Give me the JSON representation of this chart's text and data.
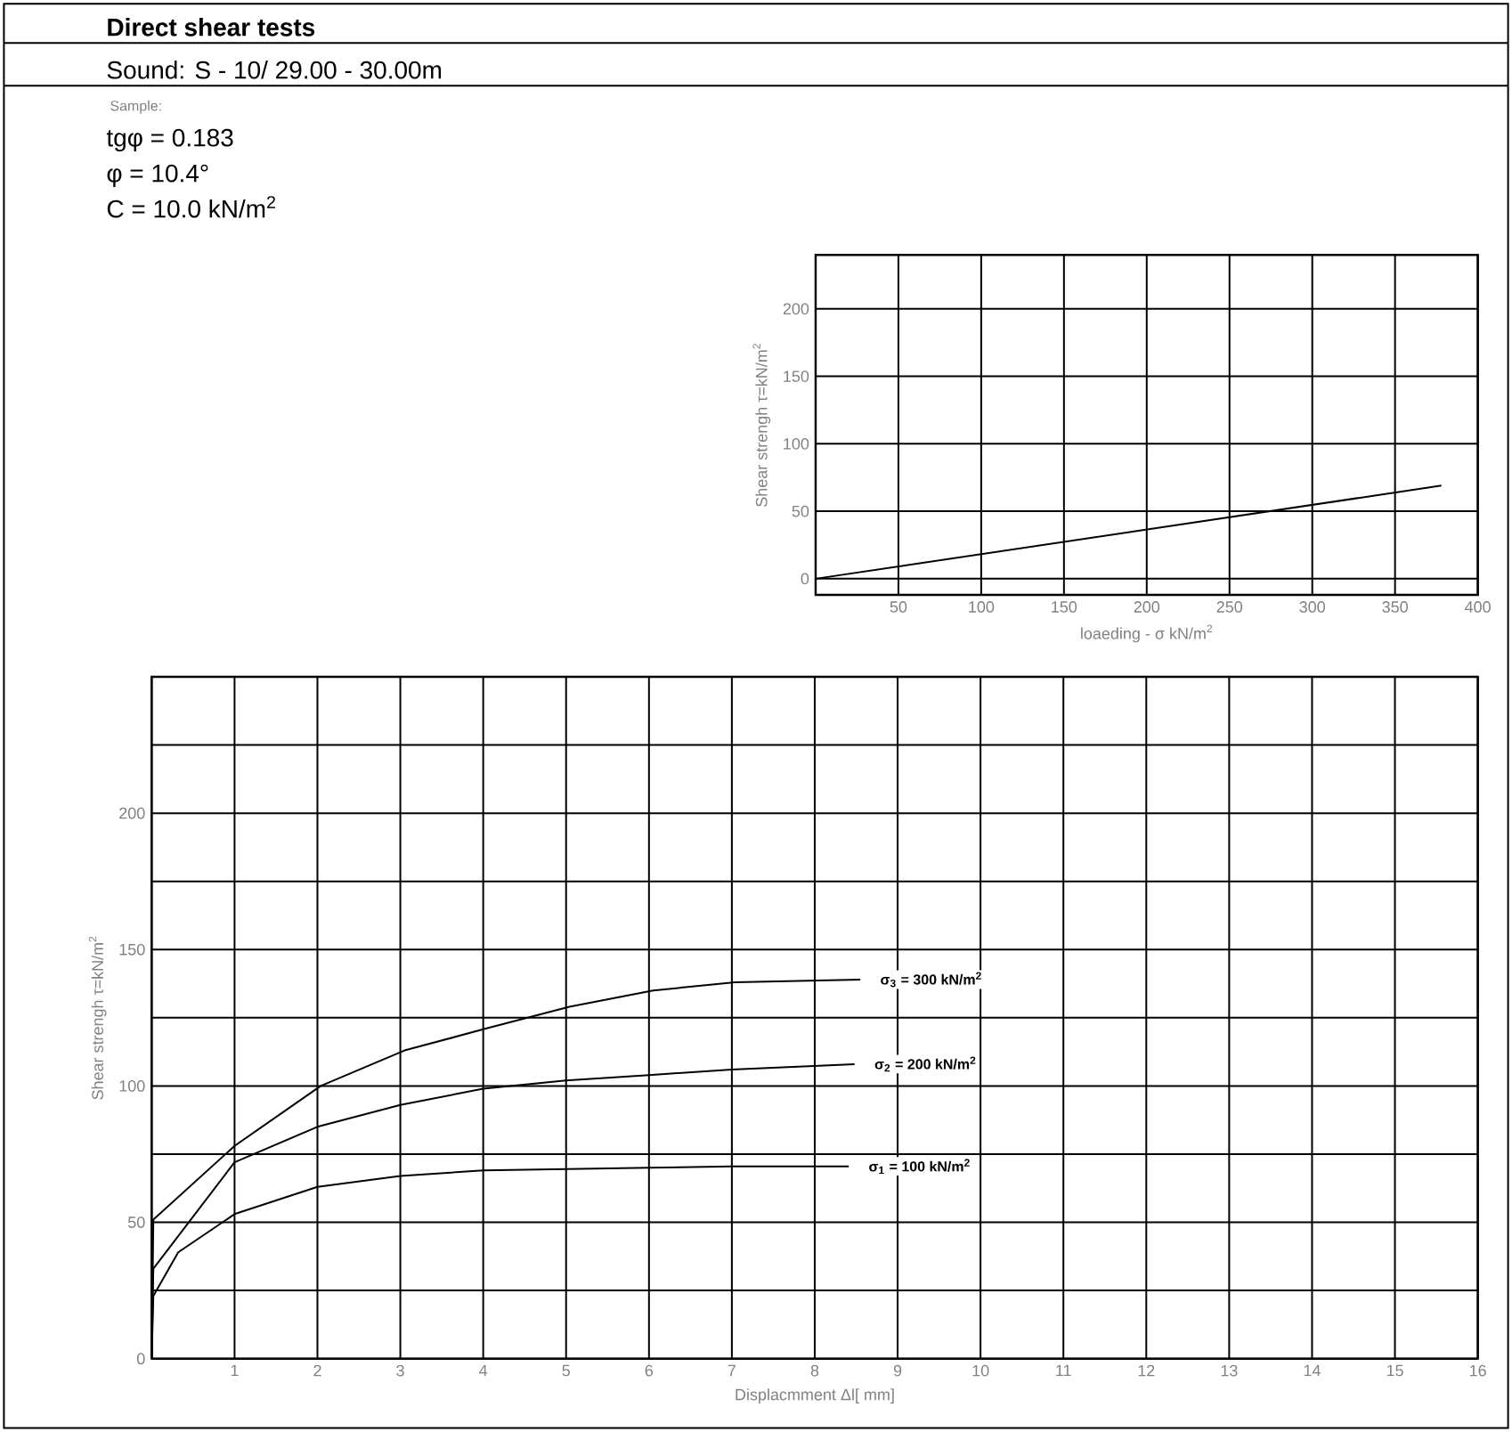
{
  "chart_data": [
    {
      "type": "other",
      "title": "Direct shear tests",
      "subtitle": "Sound:  S - 10/ 29.00 - 30.00m",
      "annotations": [
        "Sample:",
        "tgφ = 0.183",
        "φ   = 10.4°",
        "C   = 10.0 kN/m$^{2}$"
      ]
    },
    {
      "type": "line",
      "xlabel": "loaeding - σ kN/m$^{2}$",
      "ylabel": "Shear strengh  τ=kN/m$^{2}$",
      "x": [
        0,
        378
      ],
      "series": [
        {
          "color": "#000000",
          "values": [
            0,
            69
          ]
        }
      ],
      "xlim": [
        0,
        400
      ],
      "ylim": [
        -12,
        240
      ],
      "xticks": [
        {
          "value": 0,
          "label": null
        },
        50,
        100,
        150,
        200,
        250,
        300,
        350,
        400
      ],
      "yticks": [
        0,
        50,
        100,
        150,
        200
      ],
      "grid": true,
      "marker": "none",
      "line_style": "solid"
    },
    {
      "type": "line",
      "xlabel": "Displacmment Δl[ mm]",
      "ylabel": "Shear strengh  τ=kN/m$^{2}$",
      "series": [
        {
          "name": "σ$_{3}$ = 300 kN/m$^{2}$",
          "color": "#000000",
          "x": [
            0,
            0.02,
            1,
            2.04,
            3.05,
            4.03,
            5.04,
            6.05,
            7.04,
            8.55
          ],
          "values": [
            0,
            51,
            78,
            100,
            113,
            121,
            129,
            135,
            138,
            139
          ]
        },
        {
          "name": "σ$_{2}$ = 200 kN/m$^{2}$",
          "color": "#000000",
          "x": [
            0,
            0.02,
            1,
            2,
            3,
            4,
            5,
            6,
            7,
            8.48
          ],
          "values": [
            0,
            33,
            72,
            85,
            93,
            99,
            102,
            104,
            106,
            108
          ]
        },
        {
          "name": "σ$_{1}$ = 100 kN/m$^{2}$",
          "color": "#000000",
          "x": [
            0,
            0.02,
            0.32,
            1,
            2,
            3,
            4,
            5,
            6,
            7,
            8.41
          ],
          "values": [
            0,
            23,
            39,
            53,
            63,
            67,
            69,
            69.5,
            70,
            70.5,
            70.5
          ]
        }
      ],
      "xlim": [
        0,
        16
      ],
      "ylim": [
        0,
        250
      ],
      "xticks": [
        {
          "value": 0,
          "label": null
        },
        1,
        2,
        3,
        4,
        5,
        6,
        7,
        8,
        9,
        10,
        11,
        12,
        13,
        14,
        15,
        16
      ],
      "yticks": [
        0,
        {
          "value": 25,
          "label": null
        },
        50,
        {
          "value": 75,
          "label": null
        },
        100,
        {
          "value": 125,
          "label": null
        },
        150,
        {
          "value": 175,
          "label": null
        },
        200,
        {
          "value": 225,
          "label": null
        },
        {
          "value": 250,
          "label": null
        }
      ],
      "grid": true,
      "marker": "none",
      "line_style": "solid"
    }
  ]
}
